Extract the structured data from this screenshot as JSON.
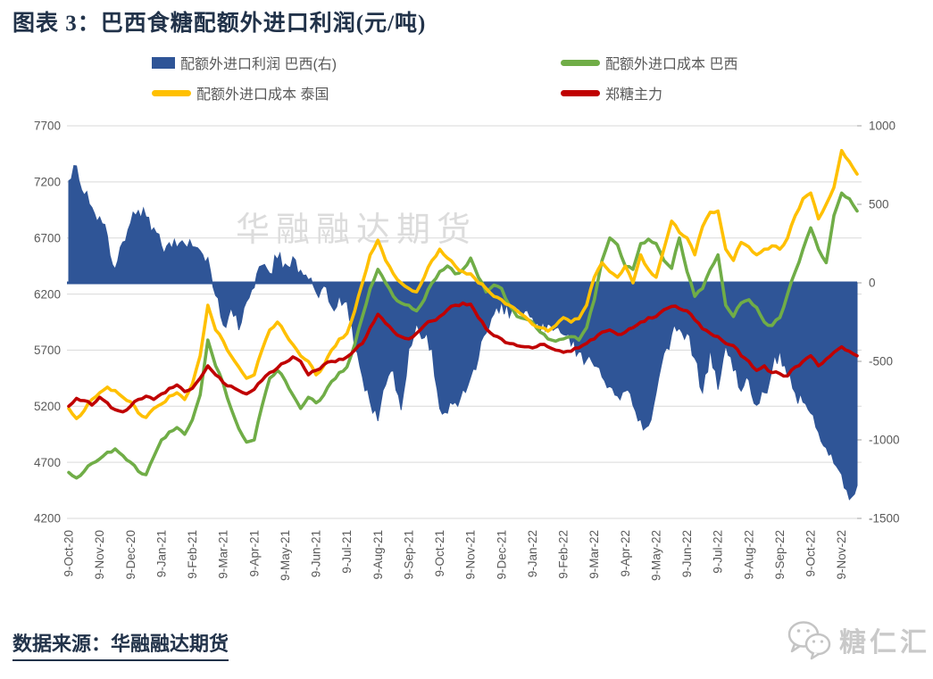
{
  "title": "图表 3：巴西食糖配额外进口利润(元/吨)",
  "watermark": "华融融达期货",
  "source_note": "数据来源：华融融达期货",
  "logo_text": "糖仁汇",
  "colors": {
    "title": "#22334a",
    "grid": "#d9d9d9",
    "axis_text": "#595959",
    "profit_blue": "#2f5597",
    "brazil_green": "#70ad47",
    "thailand_yellow": "#ffc000",
    "zhengzhou_red": "#c00000",
    "watermark_gray": "#dcdcdc"
  },
  "legend": [
    {
      "label": "配额外进口利润 巴西(右)",
      "color": "#2f5597",
      "type": "area"
    },
    {
      "label": "配额外进口成本 巴西",
      "color": "#70ad47",
      "type": "line"
    },
    {
      "label": "配额外进口成本 泰国",
      "color": "#ffc000",
      "type": "line"
    },
    {
      "label": "郑糖主力",
      "color": "#c00000",
      "type": "line"
    }
  ],
  "chart_data": {
    "type": "line",
    "subtype": "dual-axis combo: filled area on right axis + 3 lines on left axis",
    "grid": true,
    "legend_position": "top",
    "points_per_month": 4,
    "x_tick_labels": [
      "9-Oct-20",
      "9-Nov-20",
      "9-Dec-20",
      "9-Jan-21",
      "9-Feb-21",
      "9-Mar-21",
      "9-Apr-21",
      "9-May-21",
      "9-Jun-21",
      "9-Jul-21",
      "9-Aug-21",
      "9-Sep-21",
      "9-Oct-21",
      "9-Nov-21",
      "9-Dec-21",
      "9-Jan-22",
      "9-Feb-22",
      "9-Mar-22",
      "9-Apr-22",
      "9-May-22",
      "9-Jun-22",
      "9-Jul-22",
      "9-Aug-22",
      "9-Sep-22",
      "9-Oct-22",
      "9-Nov-22"
    ],
    "left_axis": {
      "min": 4200,
      "max": 7700,
      "ticks": [
        7700,
        7200,
        6700,
        6200,
        5700,
        5200,
        4700,
        4200
      ]
    },
    "right_axis": {
      "min": -1500,
      "max": 1000,
      "ticks": [
        1000,
        500,
        0,
        -500,
        -1000,
        -1500
      ]
    },
    "series": [
      {
        "name": "配额外进口利润 巴西(右)",
        "axis": "right",
        "type": "area",
        "color": "#2f5597",
        "values": [
          650,
          745,
          560,
          480,
          420,
          300,
          90,
          260,
          380,
          460,
          420,
          350,
          235,
          255,
          225,
          245,
          230,
          205,
          160,
          -80,
          -270,
          -160,
          -300,
          -120,
          -30,
          110,
          60,
          150,
          120,
          165,
          80,
          20,
          -60,
          -20,
          -150,
          -80,
          -120,
          -420,
          -600,
          -760,
          -880,
          -650,
          -560,
          -810,
          -420,
          -260,
          -350,
          -420,
          -800,
          -830,
          -760,
          -680,
          -600,
          -480,
          -320,
          -200,
          -120,
          -220,
          -160,
          -180,
          -220,
          -310,
          -260,
          -290,
          -330,
          -400,
          -440,
          -490,
          -530,
          -600,
          -660,
          -720,
          -690,
          -780,
          -870,
          -910,
          -700,
          -450,
          -330,
          -290,
          -320,
          -480,
          -700,
          -420,
          -680,
          -400,
          -560,
          -690,
          -620,
          -780,
          -700,
          -550,
          -430,
          -600,
          -700,
          -760,
          -830,
          -950,
          -1050,
          -1150,
          -1220,
          -1380,
          -1290
        ]
      },
      {
        "name": "配额外进口成本 巴西",
        "axis": "left",
        "type": "line",
        "color": "#70ad47",
        "values": [
          4610,
          4560,
          4620,
          4690,
          4730,
          4790,
          4820,
          4760,
          4700,
          4620,
          4590,
          4750,
          4900,
          4970,
          5010,
          4950,
          5080,
          5300,
          5790,
          5560,
          5400,
          5180,
          5000,
          4880,
          4900,
          5200,
          5450,
          5520,
          5430,
          5300,
          5180,
          5280,
          5230,
          5300,
          5420,
          5500,
          5550,
          5750,
          6000,
          6250,
          6420,
          6300,
          6180,
          6120,
          6100,
          6050,
          6150,
          6300,
          6400,
          6450,
          6380,
          6420,
          6520,
          6350,
          6220,
          6280,
          6250,
          6100,
          6000,
          5980,
          5950,
          5860,
          5800,
          5780,
          5800,
          5820,
          5790,
          5900,
          6150,
          6500,
          6700,
          6640,
          6450,
          6420,
          6650,
          6690,
          6650,
          6500,
          6430,
          6700,
          6400,
          6180,
          6250,
          6420,
          6550,
          6100,
          6000,
          6120,
          6150,
          6080,
          5950,
          5920,
          5990,
          6200,
          6400,
          6600,
          6790,
          6600,
          6480,
          6900,
          7100,
          7050,
          6940
        ]
      },
      {
        "name": "配额外进口成本 泰国",
        "axis": "left",
        "type": "line",
        "color": "#ffc000",
        "values": [
          5180,
          5090,
          5160,
          5260,
          5320,
          5370,
          5340,
          5280,
          5240,
          5140,
          5100,
          5180,
          5220,
          5290,
          5320,
          5260,
          5400,
          5650,
          6100,
          5880,
          5780,
          5650,
          5550,
          5450,
          5480,
          5700,
          5880,
          5950,
          5850,
          5750,
          5650,
          5600,
          5480,
          5560,
          5700,
          5800,
          5850,
          6050,
          6300,
          6550,
          6680,
          6500,
          6380,
          6300,
          6250,
          6220,
          6350,
          6500,
          6600,
          6520,
          6450,
          6400,
          6380,
          6300,
          6250,
          6180,
          6150,
          6100,
          6050,
          6000,
          5930,
          5900,
          5870,
          5920,
          5990,
          5950,
          5980,
          6100,
          6350,
          6480,
          6400,
          6350,
          6450,
          6300,
          6550,
          6420,
          6350,
          6600,
          6850,
          6750,
          6700,
          6550,
          6800,
          6930,
          6940,
          6600,
          6500,
          6660,
          6620,
          6550,
          6600,
          6630,
          6600,
          6700,
          6900,
          7050,
          7100,
          6870,
          7000,
          7150,
          7480,
          7380,
          7270
        ]
      },
      {
        "name": "郑糖主力",
        "axis": "left",
        "type": "line",
        "color": "#c00000",
        "values": [
          5200,
          5270,
          5250,
          5210,
          5280,
          5230,
          5170,
          5150,
          5200,
          5260,
          5290,
          5260,
          5310,
          5360,
          5390,
          5330,
          5360,
          5450,
          5560,
          5480,
          5410,
          5380,
          5340,
          5310,
          5350,
          5430,
          5500,
          5540,
          5590,
          5640,
          5600,
          5480,
          5520,
          5570,
          5600,
          5620,
          5640,
          5700,
          5760,
          5900,
          6020,
          5940,
          5870,
          5820,
          5800,
          5850,
          5920,
          5960,
          6000,
          6060,
          6100,
          6120,
          6110,
          5990,
          5890,
          5830,
          5800,
          5760,
          5740,
          5730,
          5720,
          5750,
          5730,
          5700,
          5680,
          5690,
          5720,
          5760,
          5800,
          5860,
          5880,
          5840,
          5860,
          5900,
          5950,
          5990,
          6000,
          6060,
          6090,
          6070,
          6050,
          5970,
          5890,
          5850,
          5820,
          5760,
          5740,
          5650,
          5600,
          5520,
          5560,
          5500,
          5490,
          5470,
          5550,
          5600,
          5650,
          5560,
          5620,
          5680,
          5730,
          5690,
          5650
        ]
      }
    ]
  }
}
